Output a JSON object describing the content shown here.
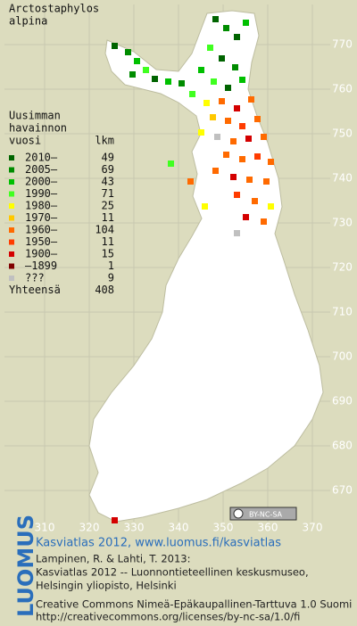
{
  "title": [
    "Arctostaphylos",
    "alpina"
  ],
  "legend": {
    "heading": [
      "Uusimman",
      "havainnon",
      "vuosi"
    ],
    "count_heading": "lkm",
    "entries": [
      {
        "label": "2010–",
        "count": 49,
        "color": "#006400"
      },
      {
        "label": "2005–",
        "count": 69,
        "color": "#008c00"
      },
      {
        "label": "2000–",
        "count": 43,
        "color": "#00c000"
      },
      {
        "label": "1990–",
        "count": 71,
        "color": "#40ff20"
      },
      {
        "label": "1980–",
        "count": 25,
        "color": "#ffff00"
      },
      {
        "label": "1970–",
        "count": 11,
        "color": "#ffc800"
      },
      {
        "label": "1960–",
        "count": 104,
        "color": "#ff6a00"
      },
      {
        "label": "1950–",
        "count": 11,
        "color": "#ff3c00"
      },
      {
        "label": "1900–",
        "count": 15,
        "color": "#d40000"
      },
      {
        "label": "–1899",
        "count": 1,
        "color": "#800000"
      },
      {
        "label": "???",
        "count": 9,
        "color": "#c0c0c0"
      }
    ],
    "total_label": "Yhteensä",
    "total": 408
  },
  "xticks": [
    310,
    320,
    330,
    340,
    350,
    360,
    370
  ],
  "yticks": [
    670,
    680,
    690,
    700,
    710,
    720,
    730,
    740,
    750,
    760,
    770
  ],
  "license_badge": "BY-NC-SA",
  "brand": "LUOMUS",
  "credits": {
    "link": "Kasviatlas 2012, www.luomus.fi/kasviatlas",
    "lines": [
      "Lampinen, R. & Lahti, T. 2013:",
      "Kasviatlas 2012 -- Luonnontieteellinen keskusmuseo,",
      "Helsingin yliopisto, Helsinki"
    ],
    "license": [
      "Creative Commons Nimeä-Epäkaupallinen-Tarttuva 1.0 Suomi",
      "http://creativecommons.org/licenses/by-nc-sa/1.0/fi"
    ]
  }
}
